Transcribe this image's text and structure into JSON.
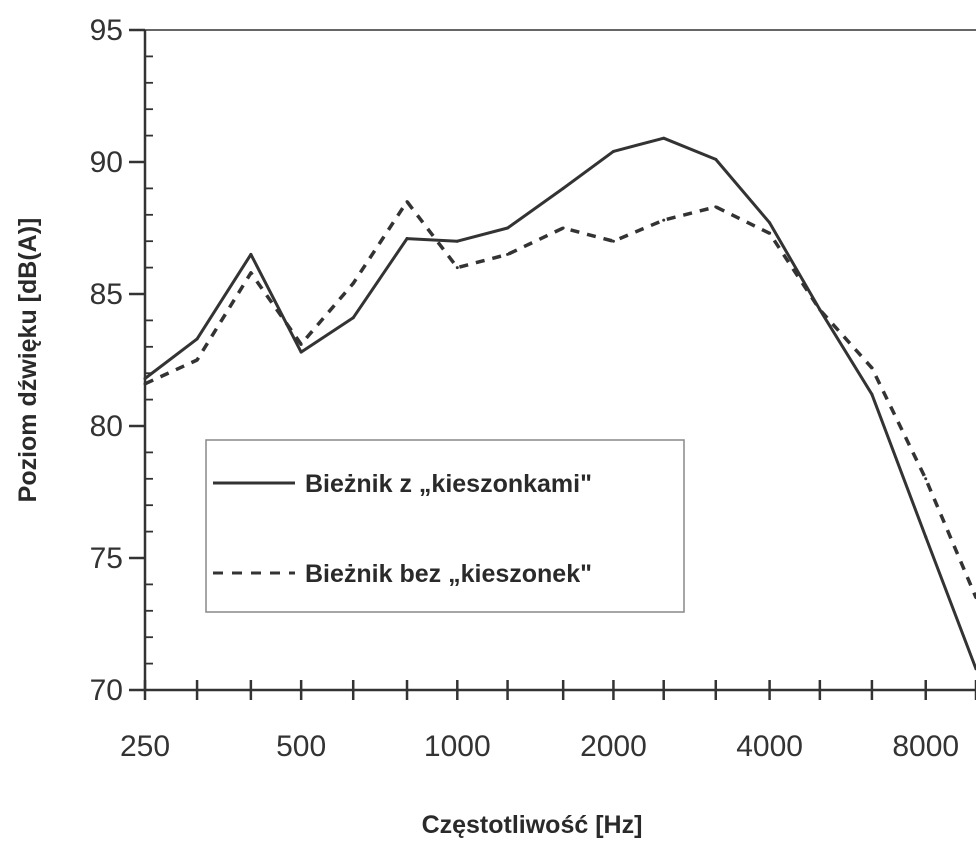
{
  "chart_data": {
    "type": "line",
    "title": "",
    "xlabel": "Częstotliwość [Hz]",
    "ylabel": "Poziom dźwięku [dB(A)]",
    "x_scale": "log",
    "x_ticks": [
      250,
      500,
      1000,
      2000,
      4000,
      8000
    ],
    "x_tick_labels": [
      "250",
      "500",
      "1000",
      "2000",
      "4000",
      "8000"
    ],
    "x_minor_ticks": [
      250,
      315,
      400,
      500,
      630,
      800,
      1000,
      1250,
      1600,
      2000,
      2500,
      3150,
      4000,
      5000,
      6300,
      8000,
      10000
    ],
    "xlim": [
      250,
      10000
    ],
    "ylim": [
      70,
      95
    ],
    "y_ticks": [
      70,
      75,
      80,
      85,
      90,
      95
    ],
    "y_tick_labels": [
      "70",
      "75",
      "80",
      "85",
      "90",
      "95"
    ],
    "grid": false,
    "legend_position": "center-left",
    "series": [
      {
        "name": "Bieżnik z „kieszonkami\"",
        "style": "solid",
        "color": "#333333",
        "x": [
          250,
          315,
          400,
          500,
          630,
          800,
          1000,
          1250,
          1600,
          2000,
          2500,
          3150,
          4000,
          5000,
          6300,
          8000,
          10000
        ],
        "y": [
          81.8,
          83.3,
          86.5,
          82.8,
          84.1,
          87.1,
          87.0,
          87.5,
          89.0,
          90.4,
          90.9,
          90.1,
          87.7,
          84.4,
          81.2,
          75.8,
          70.8
        ]
      },
      {
        "name": "Bieżnik bez „kieszonek\"",
        "style": "dashed",
        "color": "#333333",
        "x": [
          250,
          315,
          400,
          500,
          630,
          800,
          1000,
          1250,
          1600,
          2000,
          2500,
          3150,
          4000,
          5000,
          6300,
          8000,
          10000
        ],
        "y": [
          81.6,
          82.5,
          85.8,
          83.1,
          85.4,
          88.5,
          86.0,
          86.5,
          87.5,
          87.0,
          87.8,
          88.3,
          87.3,
          84.4,
          82.2,
          78.0,
          73.5
        ]
      }
    ]
  }
}
